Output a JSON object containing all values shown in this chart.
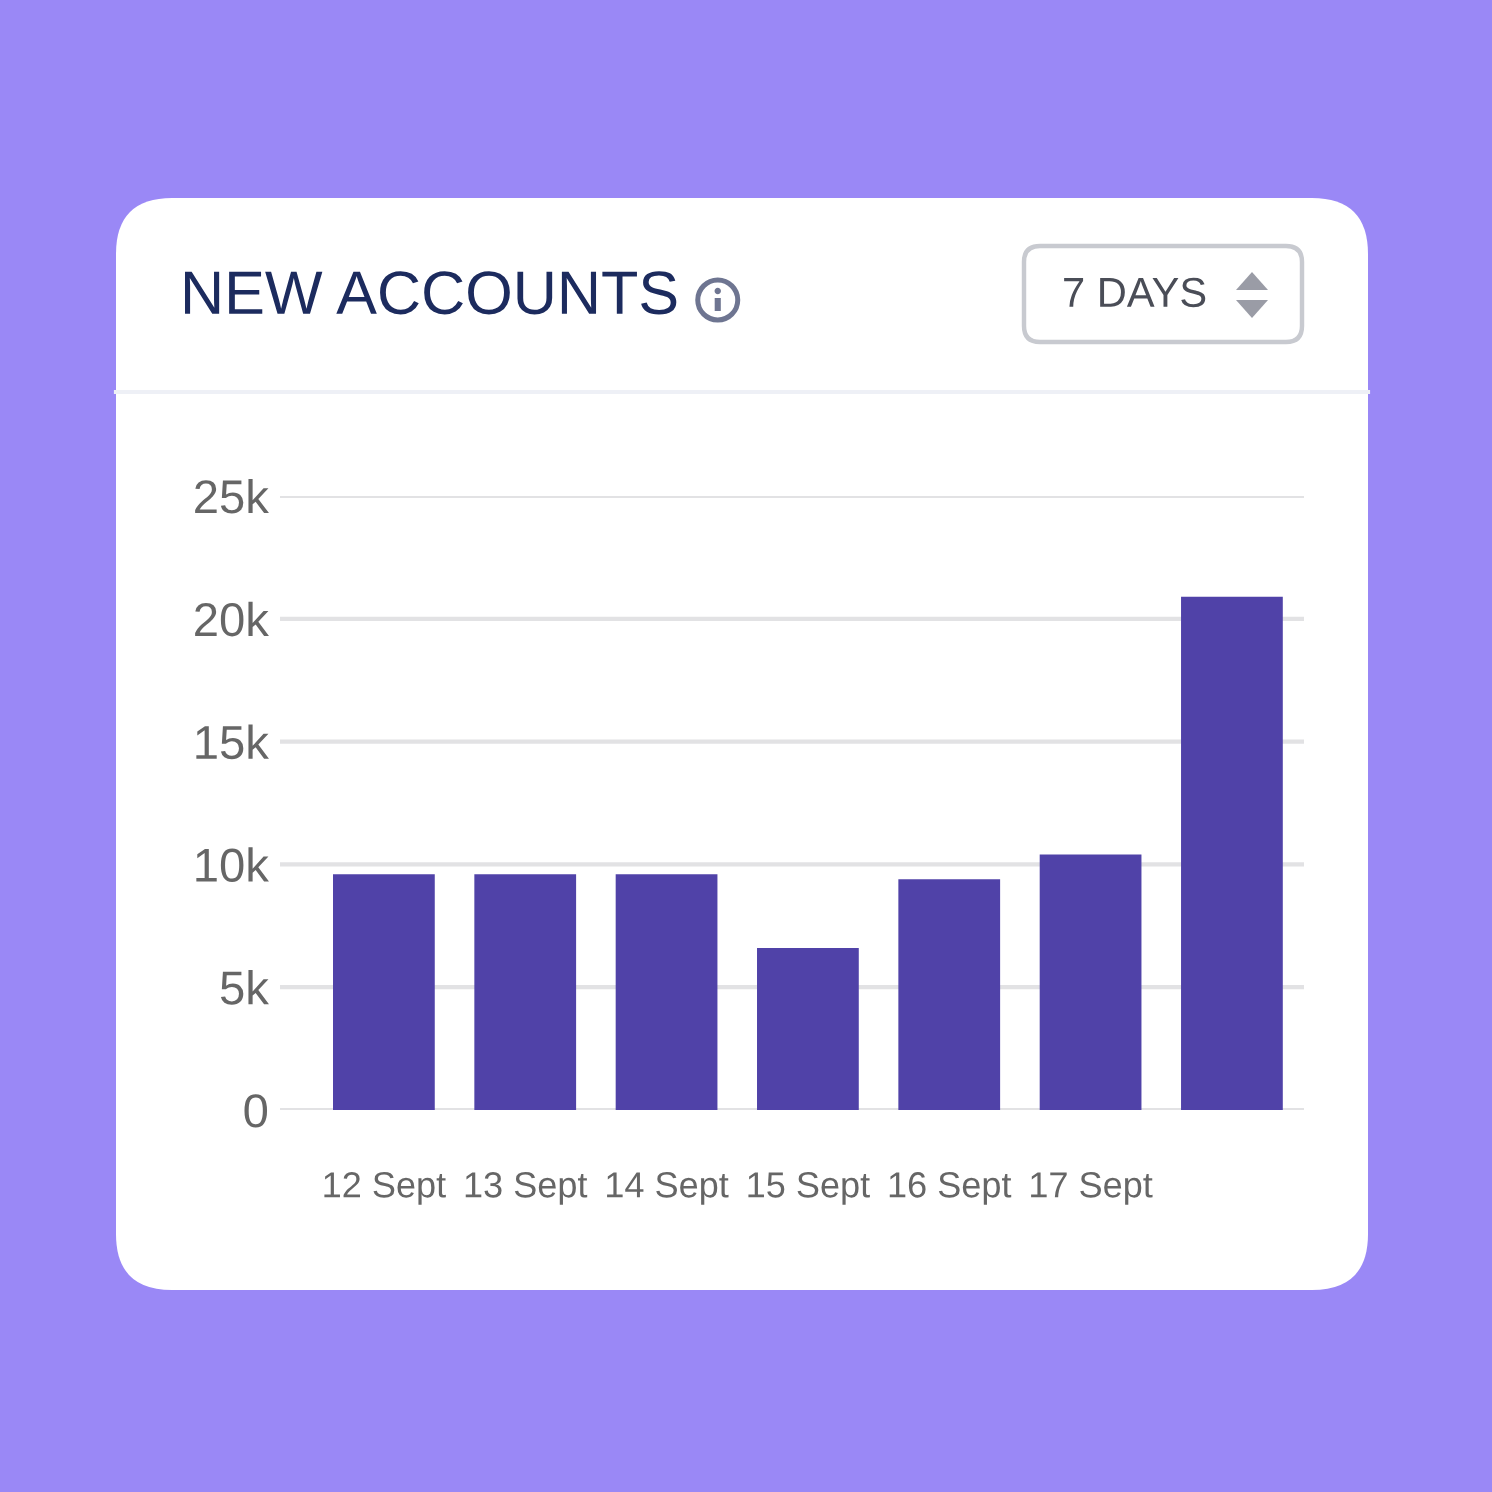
{
  "chart_data": {
    "type": "bar",
    "title": "NEW ACCOUNTS",
    "categories": [
      "12 Sept",
      "13 Sept",
      "14 Sept",
      "15 Sept",
      "16 Sept",
      "17 Sept",
      null
    ],
    "values": [
      9600,
      9600,
      9600,
      6600,
      9400,
      10400,
      20900
    ],
    "color": "#5042a8",
    "ylim": [
      0,
      25000
    ],
    "yticks": [
      0,
      {
        "value": 5000,
        "label": "5k"
      },
      {
        "value": 10000,
        "label": "10k"
      },
      {
        "value": 15000,
        "label": "15k"
      },
      {
        "value": 20000,
        "label": "20k"
      },
      {
        "value": 25000,
        "label": "25k"
      }
    ],
    "grid": "y",
    "annotations": [
      "7 DAYS"
    ]
  }
}
